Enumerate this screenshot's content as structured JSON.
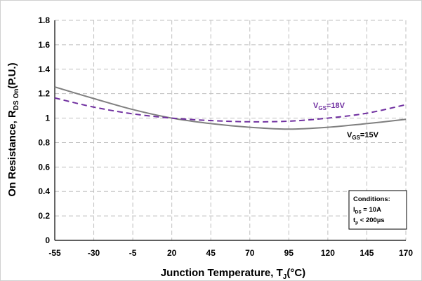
{
  "chart_data": {
    "type": "line",
    "xlabel": {
      "main": "Junction Temperature, T",
      "sub": "J",
      "suffix": "(°C)"
    },
    "ylabel": {
      "main": "On Resistance, R",
      "sub": "DS On",
      "suffix": "(P.U.)"
    },
    "xlim": [
      -55,
      170
    ],
    "ylim": [
      0,
      1.8
    ],
    "xticks": [
      -55,
      -30,
      -5,
      20,
      45,
      70,
      95,
      120,
      145,
      170
    ],
    "yticks": [
      0,
      0.2,
      0.4,
      0.6,
      0.8,
      1,
      1.2,
      1.4,
      1.6,
      1.8
    ],
    "ytick_labels": [
      "0",
      "0.2",
      "0.4",
      "0.6",
      "0.8",
      "1",
      "1.2",
      "1.4",
      "1.6",
      "1.8"
    ],
    "grid": true,
    "series": [
      {
        "label": {
          "main": "V",
          "sub": "GS",
          "suffix": "=15V"
        },
        "color": "#7f7f7f",
        "dash": "solid",
        "x": [
          -55,
          -30,
          -5,
          20,
          45,
          70,
          95,
          120,
          145,
          170
        ],
        "y": [
          1.255,
          1.16,
          1.07,
          1.0,
          0.955,
          0.925,
          0.91,
          0.925,
          0.955,
          0.99
        ]
      },
      {
        "label": {
          "main": "V",
          "sub": "GS",
          "suffix": "=18V"
        },
        "color": "#7030a0",
        "dash": "dashed",
        "x": [
          -55,
          -30,
          -5,
          20,
          45,
          70,
          95,
          120,
          145,
          170
        ],
        "y": [
          1.165,
          1.09,
          1.035,
          1.0,
          0.98,
          0.97,
          0.975,
          1.0,
          1.04,
          1.11
        ]
      }
    ],
    "annotation": {
      "title": "Conditions:",
      "lines": [
        {
          "main": "I",
          "sub": "DS",
          "suffix": " = 10A"
        },
        {
          "main": "t",
          "sub": "p",
          "suffix": " < 200µs"
        }
      ]
    }
  }
}
